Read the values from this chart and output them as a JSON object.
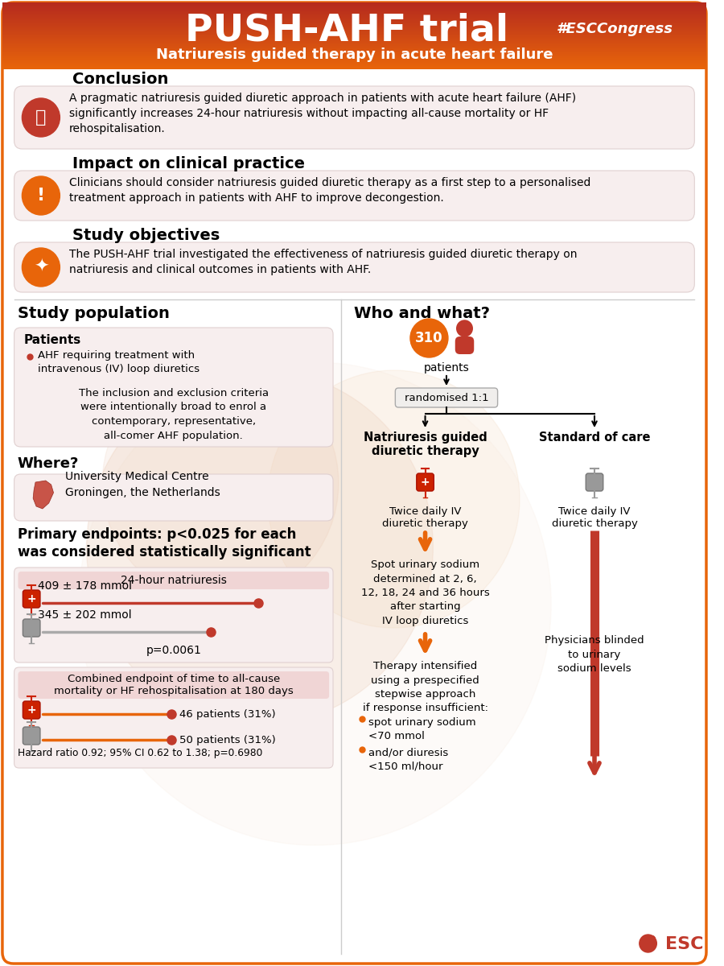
{
  "title": "PUSH-AHF trial",
  "hashtag": "#ESCCongress",
  "subtitle": "Natriuresis guided therapy in acute heart failure",
  "orange": "#e8650a",
  "dark_red": "#c0392b",
  "red_line": "#c0392b",
  "orange_line": "#e8650a",
  "gray": "#888888",
  "light_pink": "#f5e8e8",
  "lighter_pink": "#faf0f0",
  "border_orange": "#e8650a",
  "conclusion_title": "Conclusion",
  "conclusion_text": "A pragmatic natriuresis guided diuretic approach in patients with acute heart failure (AHF)\nsignificantly increases 24-hour natriuresis without impacting all-cause mortality or HF\nrehospitalisation.",
  "impact_title": "Impact on clinical practice",
  "impact_text": "Clinicians should consider natriuresis guided diuretic therapy as a first step to a personalised\ntreatment approach in patients with AHF to improve decongestion.",
  "objectives_title": "Study objectives",
  "objectives_text": "The PUSH-AHF trial investigated the effectiveness of natriuresis guided diuretic therapy on\nnatriuresis and clinical outcomes in patients with AHF.",
  "study_pop_title": "Study population",
  "who_what_title": "Who and what?",
  "patients_title": "Patients",
  "patients_bullet1": "AHF requiring treatment with\nintravenous (IV) loop diuretics",
  "patients_text": "The inclusion and exclusion criteria\nwere intentionally broad to enrol a\ncontemporary, representative,\nall-comer AHF population.",
  "where_title": "Where?",
  "where_text": "University Medical Centre\nGroningen, the Netherlands",
  "primary_ep_title": "Primary endpoints: p<0.025 for each\nwas considered statistically significant",
  "ep1_label": "24-hour natriuresis",
  "ep1_val1": "409 ± 178 mmol",
  "ep1_val2": "345 ± 202 mmol",
  "ep1_p": "p=0.0061",
  "ep2_label": "Combined endpoint of time to all-cause\nmortality or HF rehospitalisation at 180 days",
  "ep2_val1": "46 patients (31%)",
  "ep2_val2": "50 patients (31%)",
  "ep2_hr": "Hazard ratio 0.92; 95% CI 0.62 to 1.38; p=0.6980",
  "n_patients": "310",
  "randomised_text": "randomised 1:1",
  "arm1_title": "Natriuresis guided\ndiuretic therapy",
  "arm2_title": "Standard of care",
  "arm1_sub": "Twice daily IV\ndiuretic therapy",
  "arm2_sub": "Twice daily IV\ndiuretic therapy",
  "spot_text": "Spot urinary sodium\ndetermined at 2, 6,\n12, 18, 24 and 36 hours\nafter starting\nIV loop diuretics",
  "intensify_title": "Therapy intensified\nusing a prespecified\nstepwise approach\nif response insufficient:",
  "intensify_b1": "spot urinary sodium\n<70 mmol",
  "intensify_b2": "and/or diuresis\n<150 ml/hour",
  "blinded_text": "Physicians blinded\nto urinary\nsodium levels",
  "esc_text": "ESC"
}
